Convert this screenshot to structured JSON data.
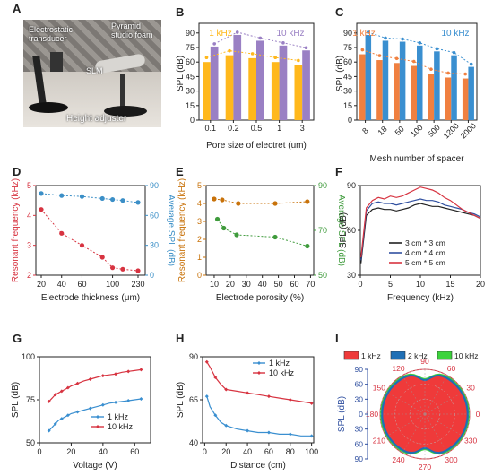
{
  "panel_letters": {
    "a": "A",
    "b": "B",
    "c": "C",
    "d": "D",
    "e": "E",
    "f": "F",
    "g": "G",
    "h": "H",
    "i": "I"
  },
  "photo": {
    "transducer": "Electrostatic transducer",
    "foam": "Pyramid studio foam",
    "slm": "SLM",
    "adjuster": "Height adjuster"
  },
  "colors": {
    "orange_bar": "#FFB81C",
    "purple_bar": "#9A80C4",
    "orange2": "#F08040",
    "blue2": "#3A8FD0",
    "red": "#D73340",
    "blue": "#3B8FC7",
    "brown": "#C8720A",
    "green": "#3F9B3C",
    "black": "#222222",
    "navy": "#3050A0"
  },
  "chart_data": [
    {
      "panel": "B",
      "type": "bar",
      "categories": [
        "0.1",
        "0.2",
        "0.5",
        "1",
        "3"
      ],
      "series": [
        {
          "name": "1 kHz",
          "values": [
            60,
            67,
            64,
            60,
            57
          ]
        },
        {
          "name": "10 kHz",
          "values": [
            76,
            88,
            82,
            77,
            72
          ]
        }
      ],
      "xlabel": "Pore size of electret (um)",
      "ylabel": "SPL (dB)",
      "ylim": [
        0,
        100
      ],
      "yticks": [
        0,
        15,
        30,
        45,
        60,
        75,
        90
      ]
    },
    {
      "panel": "C",
      "type": "bar",
      "categories": [
        "8",
        "18",
        "50",
        "100",
        "500",
        "1200",
        "2000"
      ],
      "series": [
        {
          "name": "1 kHz",
          "values": [
            68,
            62,
            59,
            56,
            48,
            44,
            43
          ]
        },
        {
          "name": "10 kHz",
          "values": [
            88,
            82,
            81,
            77,
            71,
            67,
            55
          ]
        }
      ],
      "xlabel": "Mesh number of spacer",
      "ylabel": "SPL (dB)",
      "ylim": [
        0,
        100
      ],
      "yticks": [
        0,
        15,
        30,
        45,
        60,
        75,
        90
      ]
    },
    {
      "panel": "D",
      "type": "line",
      "x_categories": [
        "20",
        "40",
        "60",
        "100",
        "230"
      ],
      "x_positions": [
        20,
        40,
        60,
        80,
        90,
        100,
        115
      ],
      "series": [
        {
          "name": "Resonant frequency (kHz)",
          "axis": "left",
          "x": [
            20,
            40,
            60,
            80,
            90,
            100,
            115
          ],
          "values": [
            4.2,
            3.4,
            3.0,
            2.6,
            2.25,
            2.2,
            2.15
          ]
        },
        {
          "name": "Average SPL (dB)",
          "axis": "right",
          "x": [
            20,
            40,
            60,
            80,
            90,
            100,
            115
          ],
          "values": [
            82,
            80,
            79,
            77,
            76,
            75,
            73
          ]
        }
      ],
      "xlabel": "Electrode thickness (μm)",
      "ylabel_left": "Resonant frequency (kHz)",
      "ylabel_right": "Average SPL (dB)",
      "ylim_left": [
        2,
        5
      ],
      "ylim_right": [
        0,
        90
      ],
      "yticks_left": [
        2,
        3,
        4,
        5
      ],
      "yticks_right": [
        0,
        30,
        60,
        90
      ]
    },
    {
      "panel": "E",
      "type": "line",
      "series": [
        {
          "name": "Resonant frequency (kHz)",
          "axis": "left",
          "x": [
            10,
            15,
            25,
            48,
            68
          ],
          "values": [
            4.25,
            4.2,
            4.0,
            4.0,
            4.1
          ]
        },
        {
          "name": "Average SPL (dB)",
          "axis": "right",
          "x": [
            12,
            16,
            24,
            48,
            68
          ],
          "values": [
            75,
            71,
            68,
            67,
            63
          ]
        }
      ],
      "xlabel": "Electrode porosity (%)",
      "ylabel_left": "Resonant frequency (kHz)",
      "ylabel_right": "Average SPL (dB)",
      "xlim": [
        5,
        72
      ],
      "xticks": [
        10,
        20,
        30,
        40,
        50,
        60,
        70
      ],
      "ylim_left": [
        0,
        5
      ],
      "ylim_right": [
        50,
        90
      ],
      "yticks_left": [
        0,
        1,
        2,
        3,
        4,
        5
      ],
      "yticks_right": [
        50,
        70,
        90
      ]
    },
    {
      "panel": "F",
      "type": "line",
      "series": [
        {
          "name": "3 cm * 3 cm",
          "x": [
            0.1,
            1,
            2,
            3,
            4,
            5,
            6,
            7,
            8,
            9,
            10,
            11,
            12,
            13,
            14,
            15,
            16,
            17,
            18,
            19,
            20
          ],
          "values": [
            38,
            70,
            74,
            75,
            74,
            74,
            73,
            74,
            75,
            77,
            78,
            77,
            76,
            76,
            75,
            74,
            73,
            72,
            71,
            70,
            68
          ]
        },
        {
          "name": "4 cm * 4 cm",
          "x": [
            0.1,
            1,
            2,
            3,
            4,
            5,
            6,
            7,
            8,
            9,
            10,
            11,
            12,
            13,
            14,
            15,
            16,
            17,
            18,
            19,
            20
          ],
          "values": [
            40,
            73,
            78,
            79,
            78,
            78,
            77,
            78,
            79,
            80,
            81,
            80,
            80,
            79,
            77,
            76,
            75,
            74,
            72,
            71,
            69
          ]
        },
        {
          "name": "5 cm * 5 cm",
          "x": [
            0.1,
            1,
            2,
            3,
            4,
            5,
            6,
            7,
            8,
            9,
            10,
            11,
            12,
            13,
            14,
            15,
            16,
            17,
            18,
            19,
            20
          ],
          "values": [
            42,
            75,
            80,
            82,
            81,
            83,
            82,
            83,
            85,
            87,
            89,
            88,
            87,
            85,
            82,
            80,
            77,
            74,
            72,
            70,
            68
          ]
        }
      ],
      "xlabel": "Frequency (kHz)",
      "ylabel": "SPL (dB)",
      "xlim": [
        0,
        20
      ],
      "ylim": [
        30,
        90
      ],
      "xticks": [
        0,
        5,
        10,
        15,
        20
      ],
      "yticks": [
        30,
        60,
        90
      ]
    },
    {
      "panel": "G",
      "type": "line",
      "series": [
        {
          "name": "1 kHz",
          "x": [
            6,
            8,
            10,
            12,
            14,
            16,
            18,
            20,
            24,
            28,
            32,
            36,
            40,
            44,
            48,
            52,
            56,
            60,
            64
          ],
          "values": [
            57,
            59,
            61,
            63,
            64,
            65,
            66,
            67,
            68,
            69,
            70,
            71,
            72,
            73,
            73.5,
            74,
            74.5,
            75,
            75.5
          ]
        },
        {
          "name": "10 kHz",
          "x": [
            6,
            8,
            10,
            12,
            14,
            16,
            18,
            20,
            24,
            28,
            32,
            36,
            40,
            44,
            48,
            52,
            56,
            60,
            64
          ],
          "values": [
            74,
            76,
            78,
            79,
            80,
            81,
            82,
            83,
            84.5,
            86,
            87,
            88,
            89,
            89.5,
            90,
            91,
            91.5,
            92,
            92.5
          ]
        }
      ],
      "xlabel": "Voltage (V)",
      "ylabel": "SPL (dB)",
      "xlim": [
        0,
        70
      ],
      "ylim": [
        50,
        100
      ],
      "xticks": [
        0,
        20,
        40,
        60
      ],
      "yticks": [
        50,
        75,
        100
      ]
    },
    {
      "panel": "H",
      "type": "line",
      "series": [
        {
          "name": "1 kHz",
          "x": [
            2,
            5,
            10,
            15,
            20,
            30,
            40,
            50,
            60,
            70,
            80,
            90,
            100
          ],
          "values": [
            67,
            61,
            56,
            52,
            50,
            48,
            47,
            46,
            46,
            45,
            45,
            44,
            44
          ]
        },
        {
          "name": "10 kHz",
          "x": [
            2,
            5,
            10,
            15,
            20,
            30,
            40,
            50,
            60,
            70,
            80,
            90,
            100
          ],
          "values": [
            87,
            84,
            78,
            74,
            71,
            70,
            69,
            68,
            67,
            66,
            65,
            64,
            63
          ]
        }
      ],
      "xlabel": "Distance (cm)",
      "ylabel": "SPL (dB)",
      "xlim": [
        -2,
        102
      ],
      "ylim": [
        40,
        90
      ],
      "xticks": [
        0,
        20,
        40,
        60,
        80,
        100
      ],
      "yticks": [
        40,
        65,
        90
      ]
    },
    {
      "panel": "I",
      "type": "polar",
      "series": [
        {
          "name": "1 kHz",
          "color": "#EF3A3A",
          "front": 84,
          "side": 82,
          "notch": 66
        },
        {
          "name": "2 kHz",
          "color": "#1F6FB5",
          "front": 88,
          "side": 86,
          "notch": 70
        },
        {
          "name": "10 kHz",
          "color": "#3CD33C",
          "front": 90,
          "side": 88,
          "notch": 72
        }
      ],
      "ylabel": "SPL (dB)",
      "rlim": [
        0,
        90
      ],
      "rticks": [
        0,
        30,
        60,
        90
      ],
      "angle_ticks": [
        0,
        30,
        60,
        90,
        120,
        150,
        180,
        210,
        240,
        270,
        300,
        330
      ]
    }
  ]
}
